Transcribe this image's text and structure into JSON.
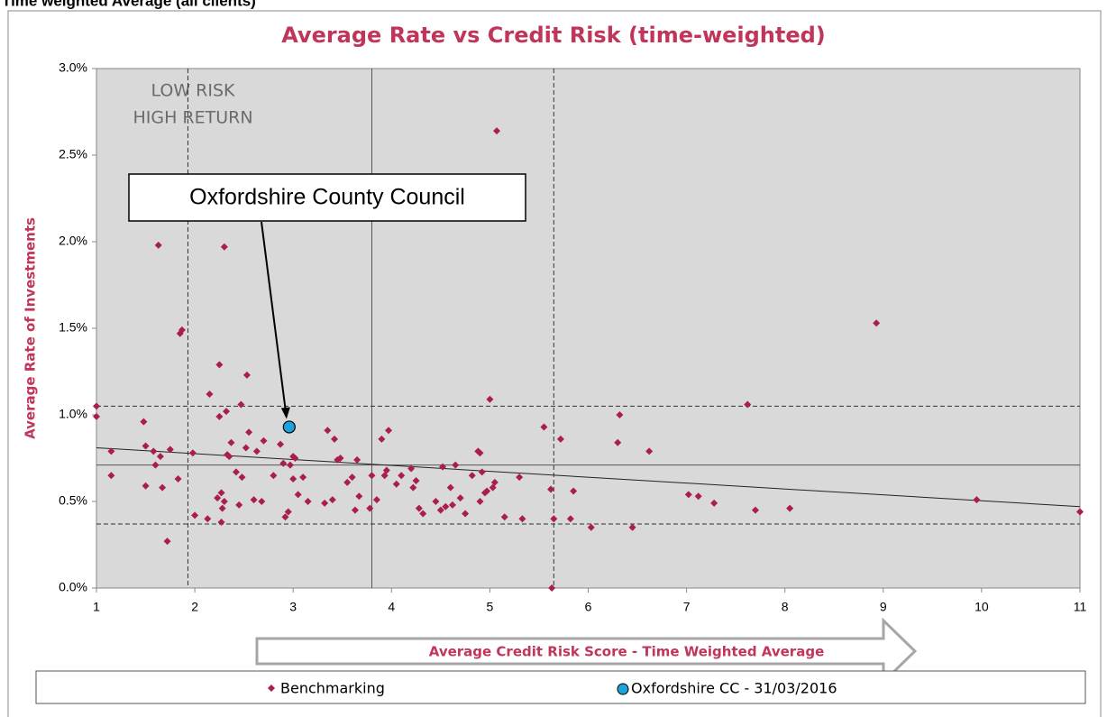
{
  "page_title": "Time weighted Average (all clients)",
  "chart_data": {
    "type": "scatter",
    "title": "Average Rate vs Credit Risk (time-weighted)",
    "y_label": "Average Rate of Investments",
    "x_label": "Average Credit Risk Score - Time Weighted Average",
    "annotations": [
      "LOW RISK",
      "HIGH RETURN"
    ],
    "callout": "Oxfordshire County Council",
    "xlim": [
      1,
      11
    ],
    "xticks": [
      1,
      2,
      3,
      4,
      5,
      6,
      7,
      8,
      9,
      10,
      11
    ],
    "ylim": [
      0,
      3
    ],
    "yticks": [
      {
        "value": 0,
        "label": "0.0%"
      },
      {
        "value": 0.5,
        "label": "0.5%"
      },
      {
        "value": 1,
        "label": "1.0%"
      },
      {
        "value": 1.5,
        "label": "1.5%"
      },
      {
        "value": 2,
        "label": "2.0%"
      },
      {
        "value": 2.5,
        "label": "2.5%"
      },
      {
        "value": 3,
        "label": "3.0%"
      }
    ],
    "reference_lines": [
      {
        "axis": "x",
        "value": 1.93,
        "style": "dashed"
      },
      {
        "axis": "x",
        "value": 5.65,
        "style": "dashed"
      },
      {
        "axis": "x",
        "value": 3.8,
        "style": "solid"
      },
      {
        "axis": "y",
        "value": 1.05,
        "style": "dashed"
      },
      {
        "axis": "y",
        "value": 0.37,
        "style": "dashed"
      },
      {
        "axis": "y",
        "value": 0.71,
        "style": "solid"
      }
    ],
    "trendline": {
      "x": [
        1,
        11
      ],
      "values": [
        0.81,
        0.47
      ]
    },
    "series": [
      {
        "name": "Benchmarking",
        "color": "#a91f4a",
        "marker": "diamond",
        "x": [
          1.0,
          1.0,
          1.15,
          1.15,
          1.48,
          1.5,
          1.5,
          1.58,
          1.6,
          1.63,
          1.65,
          1.67,
          1.72,
          1.75,
          1.83,
          1.85,
          1.87,
          1.98,
          2.0,
          2.13,
          2.15,
          2.23,
          2.25,
          2.25,
          2.27,
          2.27,
          2.28,
          2.3,
          2.3,
          2.32,
          2.33,
          2.35,
          2.37,
          2.42,
          2.45,
          2.47,
          2.48,
          2.52,
          2.53,
          2.55,
          2.6,
          2.63,
          2.68,
          2.7,
          2.8,
          2.87,
          2.9,
          2.92,
          2.95,
          2.97,
          3.0,
          3.0,
          3.02,
          3.05,
          3.1,
          3.15,
          3.32,
          3.35,
          3.4,
          3.42,
          3.45,
          3.48,
          3.55,
          3.6,
          3.63,
          3.65,
          3.67,
          3.78,
          3.8,
          3.85,
          3.9,
          3.93,
          3.95,
          3.97,
          4.05,
          4.1,
          4.2,
          4.22,
          4.25,
          4.28,
          4.32,
          4.45,
          4.5,
          4.52,
          4.55,
          4.6,
          4.62,
          4.65,
          4.7,
          4.75,
          4.82,
          4.88,
          4.9,
          4.9,
          4.92,
          4.95,
          4.97,
          5.0,
          5.03,
          5.05,
          5.07,
          5.15,
          5.3,
          5.33,
          5.55,
          5.62,
          5.63,
          5.65,
          5.72,
          5.82,
          5.85,
          6.03,
          6.3,
          6.32,
          6.45,
          6.62,
          7.02,
          7.12,
          7.28,
          7.62,
          7.7,
          8.05,
          8.93,
          9.95,
          11.0
        ],
        "values": [
          1.05,
          0.99,
          0.79,
          0.65,
          0.96,
          0.82,
          0.59,
          0.79,
          0.71,
          1.98,
          0.76,
          0.58,
          0.27,
          0.8,
          0.63,
          1.47,
          1.49,
          0.78,
          0.42,
          0.4,
          1.12,
          0.52,
          0.99,
          1.29,
          0.55,
          0.38,
          0.46,
          1.97,
          0.5,
          1.02,
          0.77,
          0.76,
          0.84,
          0.67,
          0.48,
          1.06,
          0.64,
          0.81,
          1.23,
          0.9,
          0.51,
          0.79,
          0.5,
          0.85,
          0.65,
          0.83,
          0.72,
          0.41,
          0.44,
          0.71,
          0.63,
          0.76,
          0.75,
          0.54,
          0.64,
          0.5,
          0.49,
          0.91,
          0.51,
          0.86,
          0.74,
          0.75,
          0.61,
          0.64,
          0.45,
          0.74,
          0.53,
          0.46,
          0.65,
          0.51,
          0.86,
          0.65,
          0.68,
          0.91,
          0.6,
          0.65,
          0.69,
          0.58,
          0.62,
          0.46,
          0.43,
          0.5,
          0.45,
          0.7,
          0.47,
          0.58,
          0.48,
          0.71,
          0.52,
          0.43,
          0.65,
          0.79,
          0.5,
          0.78,
          0.67,
          0.55,
          0.56,
          1.09,
          0.58,
          0.61,
          2.64,
          0.41,
          0.64,
          0.4,
          0.93,
          0.57,
          0.0,
          0.4,
          0.86,
          0.4,
          0.56,
          0.35,
          0.84,
          1.0,
          0.35,
          0.79,
          0.54,
          0.53,
          0.49,
          1.06,
          0.45,
          0.46,
          1.53,
          0.51,
          0.44
        ]
      },
      {
        "name": "Oxfordshire CC - 31/03/2016",
        "color": "#1ca3dc",
        "marker": "circle",
        "x": [
          2.96
        ],
        "values": [
          0.93
        ]
      }
    ]
  }
}
